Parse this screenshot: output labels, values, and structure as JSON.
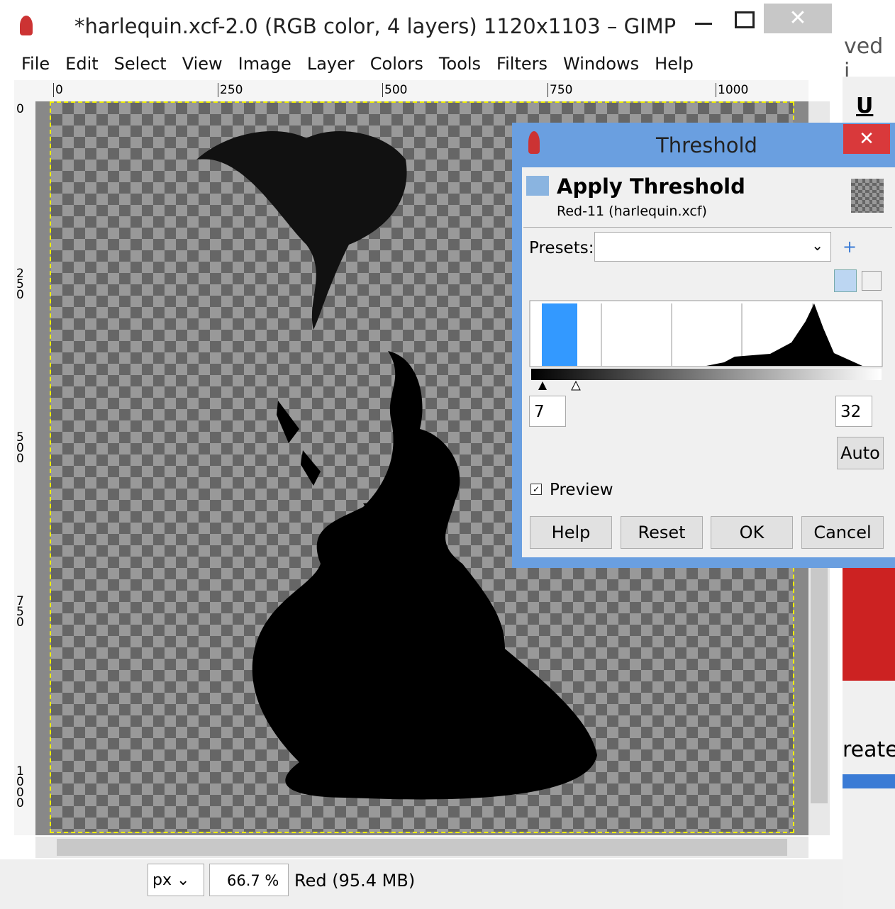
{
  "window": {
    "title": "*harlequin.xcf-2.0 (RGB color, 4 layers) 1120x1103 – GIMP",
    "menu": [
      "File",
      "Edit",
      "Select",
      "View",
      "Image",
      "Layer",
      "Colors",
      "Tools",
      "Filters",
      "Windows",
      "Help"
    ]
  },
  "rulers": {
    "horizontal": [
      "0",
      "250",
      "500",
      "750",
      "1000"
    ],
    "vertical": [
      "0",
      "250",
      "500",
      "750",
      "1000"
    ]
  },
  "dialog": {
    "title": "Threshold",
    "heading": "Apply Threshold",
    "subheading": "Red-11 (harlequin.xcf)",
    "presets_label": "Presets:",
    "low": "7",
    "high": "32",
    "auto": "Auto",
    "preview": "Preview",
    "buttons": [
      "Help",
      "Reset",
      "OK",
      "Cancel"
    ]
  },
  "status": {
    "unit": "px",
    "zoom": "66.7 %",
    "info": "Red (95.4 MB)"
  },
  "background": {
    "top_text": "ved i",
    "letter": "U",
    "bottom_text": "reate"
  }
}
